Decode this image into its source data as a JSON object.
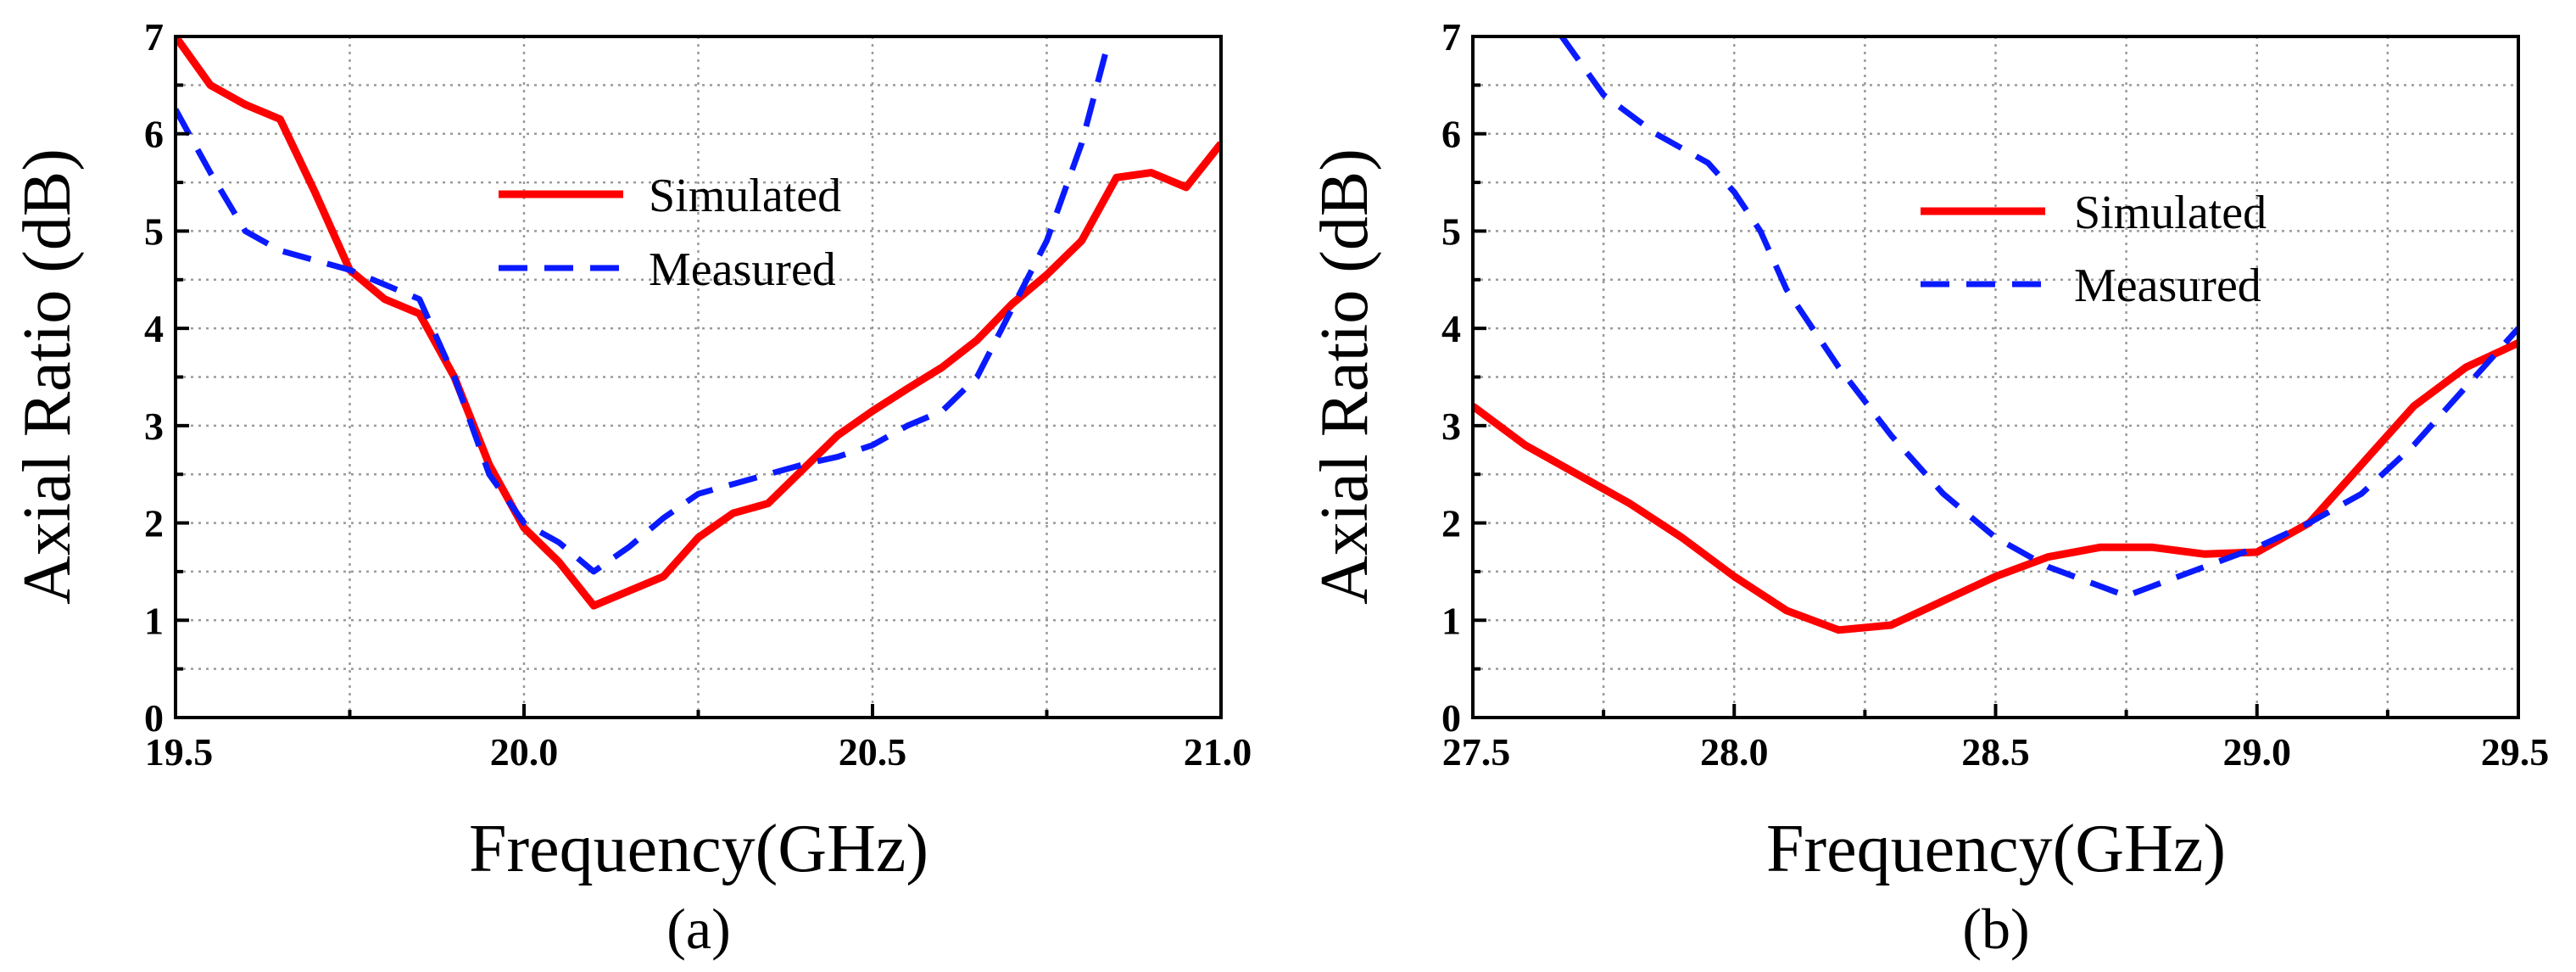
{
  "chart_data": [
    {
      "type": "line",
      "label": "(a)",
      "xlabel": "Frequency(GHz)",
      "ylabel": "Axial Ratio (dB)",
      "xlim": [
        19.5,
        21.0
      ],
      "ylim": [
        0,
        7
      ],
      "xticks": [
        19.5,
        20.0,
        20.5,
        21.0
      ],
      "xtick_labels": [
        "19.5",
        "20.0",
        "20.5",
        "21.0"
      ],
      "yticks": [
        0,
        1,
        2,
        3,
        4,
        5,
        6,
        7
      ],
      "ytick_labels": [
        "0",
        "1",
        "2",
        "3",
        "4",
        "5",
        "6",
        "7"
      ],
      "grid": true,
      "legend": [
        {
          "name": "Simulated",
          "color": "#ff0000",
          "style": "solid"
        },
        {
          "name": "Measured",
          "color": "#0a1aff",
          "style": "dashed"
        }
      ],
      "series": [
        {
          "name": "Simulated",
          "color": "#ff0000",
          "style": "solid",
          "x": [
            19.5,
            19.55,
            19.6,
            19.65,
            19.7,
            19.75,
            19.8,
            19.85,
            19.9,
            19.95,
            20.0,
            20.05,
            20.1,
            20.15,
            20.2,
            20.25,
            20.3,
            20.35,
            20.4,
            20.45,
            20.5,
            20.55,
            20.6,
            20.65,
            20.7,
            20.75,
            20.8,
            20.85,
            20.9,
            20.95,
            21.0
          ],
          "y": [
            7.0,
            6.5,
            6.3,
            6.15,
            5.4,
            4.6,
            4.3,
            4.15,
            3.5,
            2.6,
            1.95,
            1.6,
            1.15,
            1.3,
            1.45,
            1.85,
            2.1,
            2.2,
            2.55,
            2.9,
            3.15,
            3.38,
            3.6,
            3.88,
            4.25,
            4.55,
            4.9,
            5.55,
            5.6,
            5.45,
            5.9
          ]
        },
        {
          "name": "Measured",
          "color": "#0a1aff",
          "style": "dashed",
          "x": [
            19.5,
            19.55,
            19.6,
            19.65,
            19.7,
            19.75,
            19.8,
            19.85,
            19.9,
            19.95,
            20.0,
            20.05,
            20.1,
            20.15,
            20.2,
            20.25,
            20.3,
            20.35,
            20.4,
            20.45,
            20.5,
            20.55,
            20.6,
            20.65,
            20.7,
            20.75,
            20.8,
            20.835
          ],
          "y": [
            6.25,
            5.6,
            5.0,
            4.8,
            4.7,
            4.6,
            4.45,
            4.3,
            3.5,
            2.5,
            2.0,
            1.8,
            1.5,
            1.75,
            2.05,
            2.3,
            2.4,
            2.5,
            2.6,
            2.68,
            2.8,
            3.0,
            3.15,
            3.5,
            4.2,
            4.9,
            5.9,
            6.85
          ]
        }
      ]
    },
    {
      "type": "line",
      "label": "(b)",
      "xlabel": "Frequency(GHz)",
      "ylabel": "Axial Ratio (dB)",
      "xlim": [
        27.5,
        29.5
      ],
      "ylim": [
        0,
        7
      ],
      "xticks": [
        27.5,
        28.0,
        28.5,
        29.0,
        29.5
      ],
      "xtick_labels": [
        "27.5",
        "28.0",
        "28.5",
        "29.0",
        "29.5"
      ],
      "yticks": [
        0,
        1,
        2,
        3,
        4,
        5,
        6,
        7
      ],
      "ytick_labels": [
        "0",
        "1",
        "2",
        "3",
        "4",
        "5",
        "6",
        "7"
      ],
      "grid": true,
      "legend": [
        {
          "name": "Simulated",
          "color": "#ff0000",
          "style": "solid"
        },
        {
          "name": "Measured",
          "color": "#0a1aff",
          "style": "dashed"
        }
      ],
      "series": [
        {
          "name": "Simulated",
          "color": "#ff0000",
          "style": "solid",
          "x": [
            27.5,
            27.6,
            27.7,
            27.8,
            27.9,
            28.0,
            28.1,
            28.2,
            28.3,
            28.4,
            28.5,
            28.6,
            28.7,
            28.8,
            28.9,
            29.0,
            29.1,
            29.2,
            29.3,
            29.4,
            29.5
          ],
          "y": [
            3.2,
            2.8,
            2.5,
            2.2,
            1.85,
            1.45,
            1.1,
            0.9,
            0.95,
            1.2,
            1.45,
            1.65,
            1.75,
            1.75,
            1.68,
            1.7,
            2.0,
            2.6,
            3.2,
            3.6,
            3.85
          ]
        },
        {
          "name": "Measured",
          "color": "#0a1aff",
          "style": "dashed",
          "x": [
            27.67,
            27.75,
            27.85,
            27.95,
            28.0,
            28.05,
            28.1,
            28.2,
            28.3,
            28.4,
            28.5,
            28.6,
            28.7,
            28.75,
            28.8,
            28.9,
            29.0,
            29.1,
            29.2,
            29.3,
            29.4,
            29.5
          ],
          "y": [
            7.0,
            6.4,
            6.0,
            5.7,
            5.4,
            5.0,
            4.4,
            3.6,
            2.9,
            2.3,
            1.85,
            1.55,
            1.35,
            1.25,
            1.35,
            1.55,
            1.75,
            2.0,
            2.3,
            2.8,
            3.4,
            4.0
          ]
        }
      ]
    }
  ]
}
